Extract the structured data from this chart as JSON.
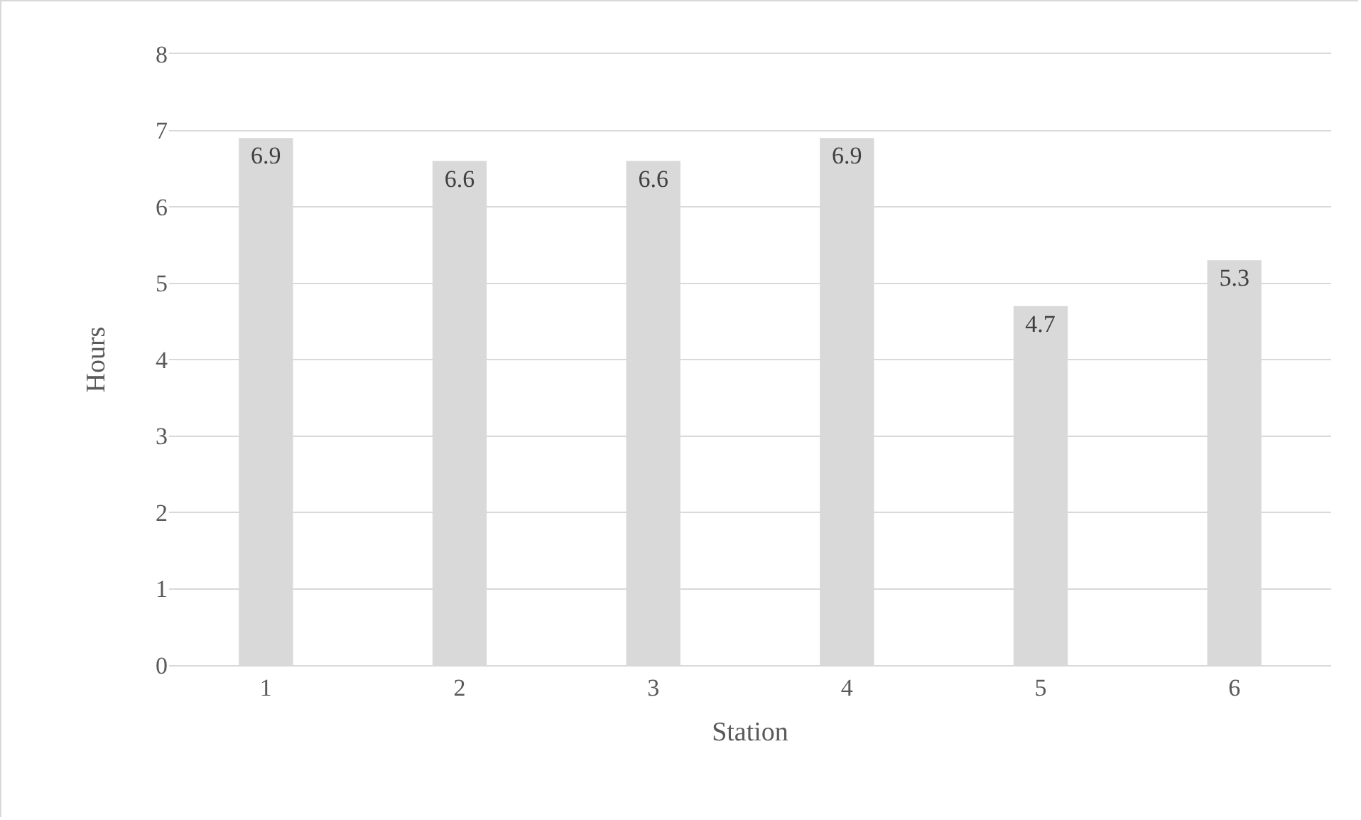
{
  "chart_data": {
    "type": "bar",
    "xlabel": "Station",
    "ylabel": "Hours",
    "categories": [
      "1",
      "2",
      "3",
      "4",
      "5",
      "6"
    ],
    "values": [
      6.9,
      6.6,
      6.6,
      6.9,
      4.7,
      5.3
    ],
    "color": "#d9d9d9",
    "ylim": [
      0,
      8
    ],
    "yticks": [
      0,
      1,
      2,
      3,
      4,
      5,
      6,
      7,
      8
    ],
    "grid": "y",
    "data_labels": true
  }
}
